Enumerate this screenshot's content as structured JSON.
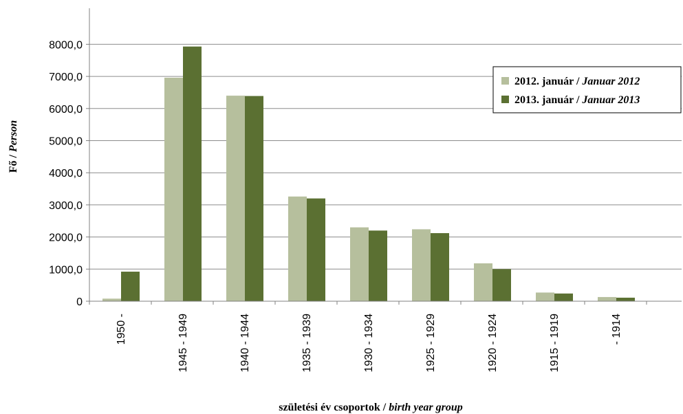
{
  "chart_data": {
    "type": "bar",
    "title": "",
    "ylabel": {
      "plain": "Fő / ",
      "italic": "Person"
    },
    "xlabel": {
      "plain": "születési év csoportok / ",
      "italic": "birth year group"
    },
    "ylim": [
      0,
      9000
    ],
    "ytick_values": [
      0,
      1000,
      2000,
      3000,
      4000,
      5000,
      6000,
      7000,
      8000
    ],
    "ytick_labels": [
      "0",
      "1000,0",
      "2000,0",
      "3000,0",
      "4000,0",
      "5000,0",
      "6000,0",
      "7000,0",
      "8000,0"
    ],
    "grid": true,
    "legend_position": "top-right",
    "categories": [
      "1950 -",
      "1945 - 1949",
      "1940 - 1944",
      "1935 - 1939",
      "1930 - 1934",
      "1925 - 1929",
      "1920 - 1924",
      "1915 - 1919",
      "- 1914"
    ],
    "series": [
      {
        "name_plain": "2012. január / ",
        "name_italic": "Januar 2012",
        "color": "#b6bf9d",
        "values": [
          80,
          6960,
          6400,
          3260,
          2300,
          2240,
          1180,
          270,
          130
        ]
      },
      {
        "name_plain": "2013. január / ",
        "name_italic": "Januar 2013",
        "color": "#5b7032",
        "values": [
          920,
          7930,
          6390,
          3200,
          2200,
          2120,
          1000,
          240,
          110
        ]
      }
    ]
  }
}
